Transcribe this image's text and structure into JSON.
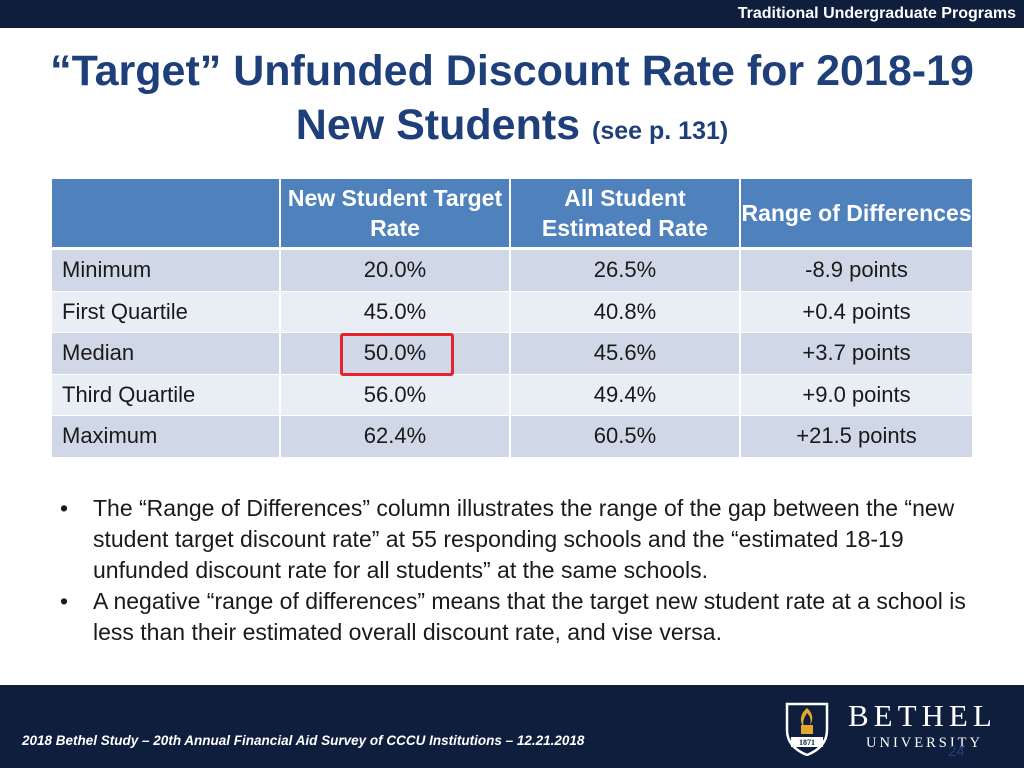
{
  "header": {
    "program_label": "Traditional Undergraduate Programs"
  },
  "title": {
    "main": "“Target” Unfunded Discount Rate for 2018-19 New Students",
    "sub": "(see p. 131)"
  },
  "table": {
    "columns": [
      "",
      "New Student Target Rate",
      "All Student Estimated Rate",
      "Range of Differences"
    ],
    "rows": [
      {
        "label": "Minimum",
        "target": "20.0%",
        "estimated": "26.5%",
        "range": "-8.9 points"
      },
      {
        "label": "First Quartile",
        "target": "45.0%",
        "estimated": "40.8%",
        "range": "+0.4 points"
      },
      {
        "label": "Median",
        "target": "50.0%",
        "estimated": "45.6%",
        "range": "+3.7 points"
      },
      {
        "label": "Third Quartile",
        "target": "56.0%",
        "estimated": "49.4%",
        "range": "+9.0 points"
      },
      {
        "label": "Maximum",
        "target": "62.4%",
        "estimated": "60.5%",
        "range": "+21.5 points"
      }
    ],
    "highlighted_cell": "Median / New Student Target Rate"
  },
  "bullets": [
    "The “Range of Differences” column illustrates the range of the gap between the “new student target discount rate” at 55 responding schools and the “estimated 18-19 unfunded discount rate for all students” at the same schools.",
    "A negative “range of differences” means that the target new student rate at a school is less than their estimated overall discount rate, and vise versa."
  ],
  "footer": {
    "citation": "2018 Bethel Study – 20th Annual Financial Aid Survey of CCCU Institutions – 12.21.2018",
    "logo_name": "BETHEL",
    "logo_sub": "UNIVERSITY",
    "logo_year": "1871",
    "page_number": "24"
  },
  "colors": {
    "navy_bar": "#0e1e3c",
    "title_blue": "#1f3f7a",
    "table_header": "#4f81bd",
    "row_dark": "#d0d8e8",
    "row_light": "#e9edf4",
    "highlight_red": "#e8222a",
    "logo_gold": "#e3a72f"
  }
}
